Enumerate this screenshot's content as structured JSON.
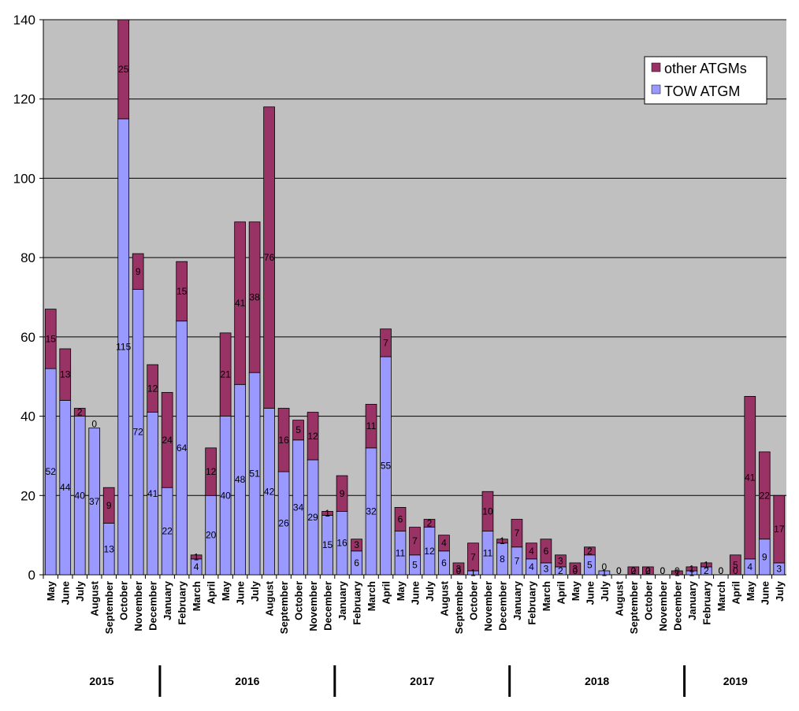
{
  "chart_data": {
    "type": "bar",
    "stacked": true,
    "categories": [
      "May",
      "June",
      "July",
      "August",
      "September",
      "October",
      "November",
      "December",
      "January",
      "February",
      "March",
      "April",
      "May",
      "June",
      "July",
      "August",
      "September",
      "October",
      "November",
      "December",
      "January",
      "February",
      "March",
      "April",
      "May",
      "June",
      "July",
      "August",
      "September",
      "October",
      "November",
      "December",
      "January",
      "February",
      "March",
      "April",
      "May",
      "June",
      "July",
      "August",
      "September",
      "October",
      "November",
      "December",
      "January",
      "February",
      "March",
      "April",
      "May",
      "June",
      "July"
    ],
    "series": [
      {
        "name": "TOW ATGM",
        "color": "#9999ff",
        "values": [
          52,
          44,
          40,
          37,
          13,
          115,
          72,
          41,
          22,
          64,
          4,
          20,
          40,
          48,
          51,
          42,
          26,
          34,
          29,
          15,
          16,
          6,
          32,
          55,
          11,
          5,
          12,
          6,
          0,
          1,
          11,
          8,
          7,
          4,
          3,
          2,
          0,
          5,
          1,
          0,
          0,
          0,
          0,
          0,
          1,
          2,
          0,
          0,
          4,
          9,
          3
        ]
      },
      {
        "name": "other ATGMs",
        "color": "#993366",
        "values": [
          15,
          13,
          2,
          0,
          9,
          25,
          9,
          12,
          24,
          15,
          1,
          12,
          21,
          41,
          38,
          76,
          16,
          5,
          12,
          1,
          9,
          3,
          11,
          7,
          6,
          7,
          2,
          4,
          3,
          7,
          10,
          1,
          7,
          4,
          6,
          3,
          3,
          2,
          0,
          0,
          2,
          2,
          0,
          1,
          1,
          1,
          0,
          5,
          41,
          22,
          17
        ]
      }
    ],
    "year_groups": [
      {
        "label": "2015",
        "start": 0,
        "end": 7
      },
      {
        "label": "2016",
        "start": 8,
        "end": 19
      },
      {
        "label": "2017",
        "start": 20,
        "end": 31
      },
      {
        "label": "2018",
        "start": 32,
        "end": 43
      },
      {
        "label": "2019",
        "start": 44,
        "end": 50
      }
    ],
    "y_ticks": [
      "0",
      "20",
      "40",
      "60",
      "80",
      "100",
      "120",
      "140"
    ],
    "ylim": [
      0,
      140
    ],
    "grid": true,
    "plot_background": "#c0c0c0",
    "legend_position": "top-right",
    "legend": [
      "other ATGMs",
      "TOW ATGM"
    ],
    "data_labels": {
      "tow": [
        "52",
        "44",
        "40",
        "37",
        "13",
        "115",
        "72",
        "41",
        "22",
        "64",
        "4",
        "20",
        "40",
        "48",
        "51",
        "42",
        "26",
        "34",
        "29",
        "15",
        "16",
        "6",
        "32",
        "55",
        "11",
        "5",
        "12",
        "6",
        "0",
        "1",
        "11",
        "8",
        "7",
        "4",
        "3",
        "2",
        "0",
        "5",
        "1",
        "0",
        "0",
        "0",
        "0",
        "0",
        "1",
        "2",
        "0",
        "0",
        "4",
        "9",
        "3"
      ],
      "other": [
        "15",
        "13",
        "2",
        "0",
        "9",
        "25",
        "9",
        "12",
        "24",
        "15",
        "1",
        "12",
        "21",
        "41",
        "38",
        "76",
        "16",
        "5",
        "12",
        "1",
        "9",
        "3",
        "11",
        "7",
        "6",
        "7",
        "2",
        "4",
        "3",
        "7",
        "10",
        "1",
        "7",
        "4",
        "6",
        "3",
        "3",
        "2",
        "0",
        "0",
        "2",
        "2",
        "0",
        "1",
        "1",
        "1",
        "0",
        "5",
        "41",
        "22",
        "17"
      ]
    }
  }
}
